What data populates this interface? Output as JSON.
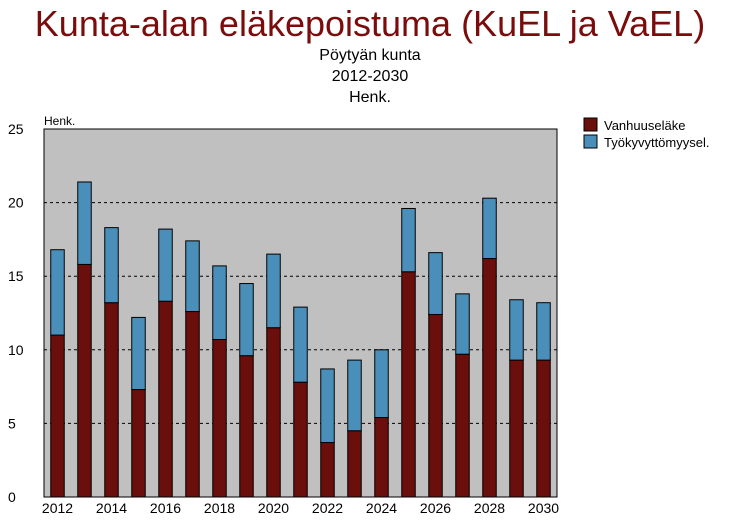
{
  "chart_data": {
    "type": "bar",
    "stacked": true,
    "title": "Kunta-alan eläkepoistuma (KuEL ja VaEL)",
    "subtitle": [
      "Pöytyän kunta",
      "2012-2030",
      "Henk."
    ],
    "ylabel": "Henk.",
    "xlabel": "",
    "ylim": [
      0,
      25
    ],
    "yticks": [
      0,
      5,
      10,
      15,
      20,
      25
    ],
    "grid": true,
    "legend_position": "top-right",
    "categories": [
      "2012",
      "2013",
      "2014",
      "2015",
      "2016",
      "2017",
      "2018",
      "2019",
      "2020",
      "2021",
      "2022",
      "2023",
      "2024",
      "2025",
      "2026",
      "2027",
      "2028",
      "2029",
      "2030"
    ],
    "x_tick_labels": [
      "2012",
      "",
      "2014",
      "",
      "2016",
      "",
      "2018",
      "",
      "2020",
      "",
      "2022",
      "",
      "2024",
      "",
      "2026",
      "",
      "2028",
      "",
      "2030"
    ],
    "series": [
      {
        "name": "Vanhuuseläke",
        "color": "#6a0f0c",
        "values": [
          11.0,
          15.8,
          13.2,
          7.3,
          13.3,
          12.6,
          10.7,
          9.6,
          11.5,
          7.8,
          3.7,
          4.5,
          5.4,
          15.3,
          12.4,
          9.7,
          16.2,
          9.3,
          9.3
        ]
      },
      {
        "name": "Työkyvyttömyysel.",
        "color": "#4a8fba",
        "values": [
          5.8,
          5.6,
          5.1,
          4.9,
          4.9,
          4.8,
          5.0,
          4.9,
          5.0,
          5.1,
          5.0,
          4.8,
          4.6,
          4.3,
          4.2,
          4.1,
          4.1,
          4.1,
          3.9
        ]
      }
    ],
    "plot_background": "#c0c0c0"
  }
}
